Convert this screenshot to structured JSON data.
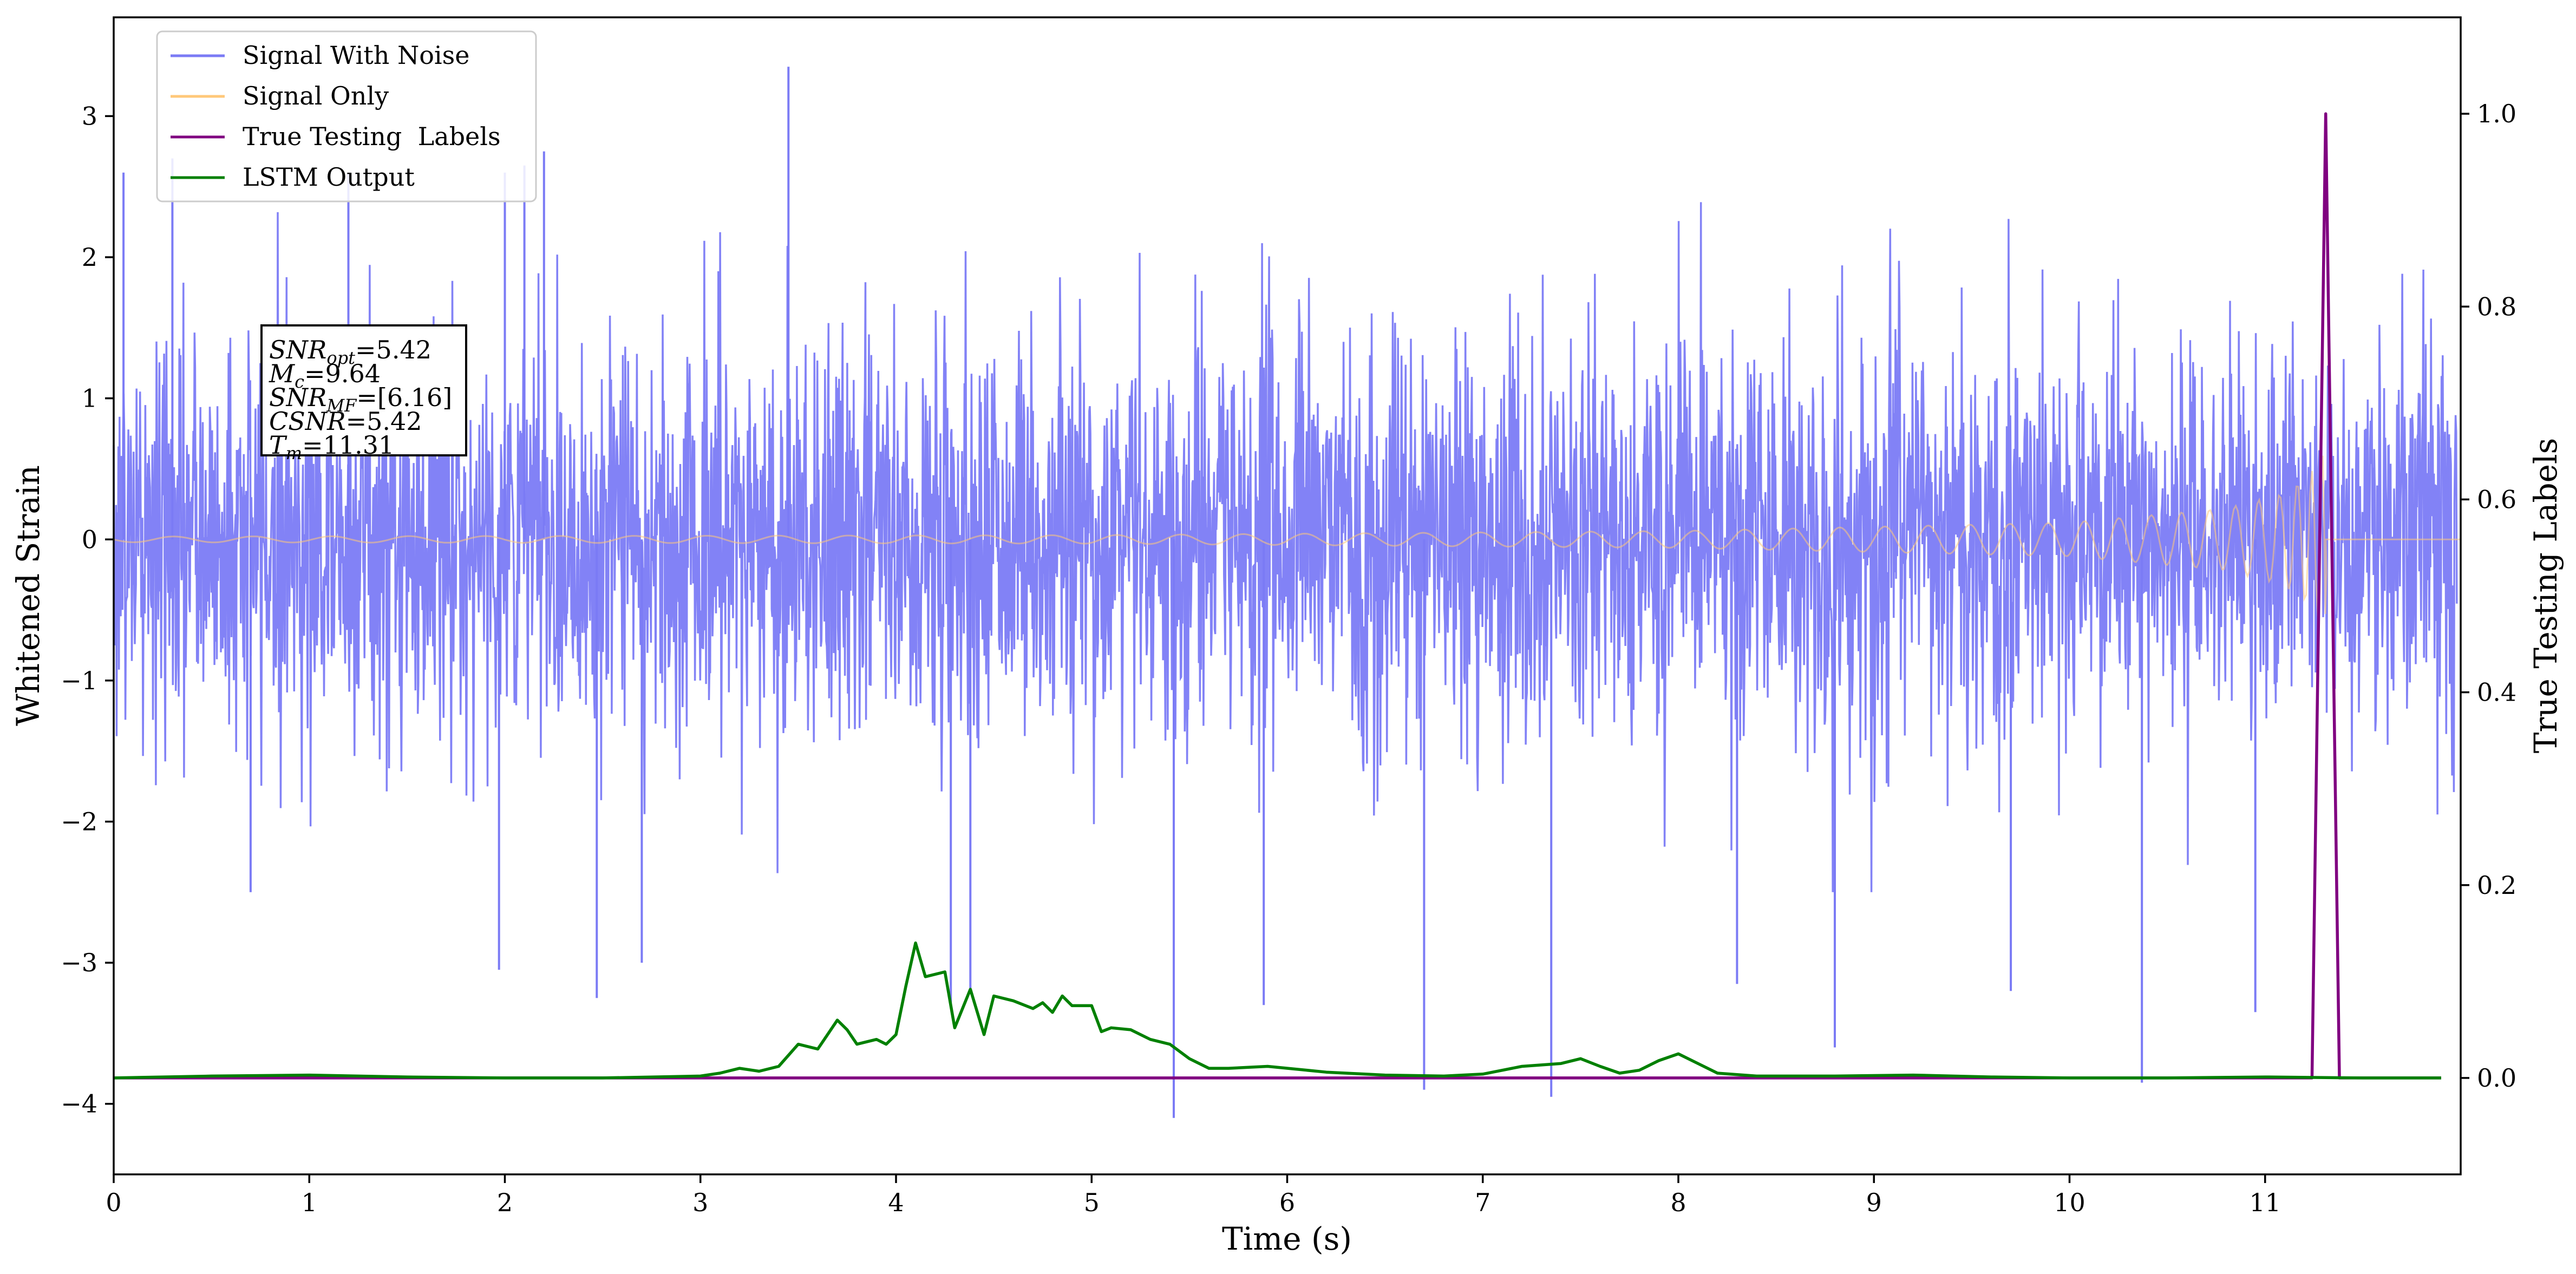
{
  "chart_data": {
    "type": "line",
    "title": "",
    "xlabel": "Time (s)",
    "ylabel": "Whitened Strain",
    "ylabel_right": "True Testing Labels",
    "xlim": [
      0,
      12
    ],
    "ylim": [
      -4.5,
      3.7
    ],
    "ylim_right": [
      -0.1,
      1.1
    ],
    "x_ticks": [
      0,
      1,
      2,
      3,
      4,
      5,
      6,
      7,
      8,
      9,
      10,
      11
    ],
    "x_tick_labels": [
      "0",
      "1",
      "2",
      "3",
      "4",
      "5",
      "6",
      "7",
      "8",
      "9",
      "10",
      "11"
    ],
    "y_ticks": [
      -4,
      -3,
      -2,
      -1,
      0,
      1,
      2,
      3
    ],
    "y_tick_labels": [
      "−4",
      "−3",
      "−2",
      "−1",
      "0",
      "1",
      "2",
      "3"
    ],
    "y_ticks_right": [
      0.0,
      0.2,
      0.4,
      0.6,
      0.8,
      1.0
    ],
    "y_tick_labels_right": [
      "0.0",
      "0.2",
      "0.4",
      "0.6",
      "0.8",
      "1.0"
    ],
    "grid": false,
    "legend": {
      "placement": "top-left",
      "entries": [
        {
          "label": "Signal With Noise",
          "color": "#7b7bf5"
        },
        {
          "label": "Signal Only",
          "color": "#ffc87a"
        },
        {
          "label": "True Testing  Labels",
          "color": "#800080"
        },
        {
          "label": "LSTM Output",
          "color": "#008000"
        }
      ]
    },
    "annotation": {
      "placement": "upper-left",
      "lines": [
        {
          "sym": "SNR",
          "sub": "opt",
          "val": "=5.42"
        },
        {
          "sym": "M",
          "sub": "c",
          "val": "=9.64"
        },
        {
          "sym": "SNR",
          "sub": "MF",
          "val": "=[6.16]"
        },
        {
          "sym": "CSNR",
          "sub": "",
          "val": "=5.42"
        },
        {
          "sym": "T",
          "sub": "m",
          "val": "=11.31"
        }
      ]
    },
    "series": [
      {
        "name": "Signal With Noise",
        "axis": "left",
        "color": "#7b7bf5",
        "description_of_shape": "dense noise, roughly |y|<=1.5 with spikes to about 3.35 and -4.1",
        "x_range": [
          0,
          11.98
        ],
        "spikes": [
          {
            "x": 0.05,
            "y": 2.6
          },
          {
            "x": 0.3,
            "y": 2.7
          },
          {
            "x": 0.7,
            "y": -2.5
          },
          {
            "x": 1.2,
            "y": 2.6
          },
          {
            "x": 1.97,
            "y": -3.05
          },
          {
            "x": 2.0,
            "y": 2.6
          },
          {
            "x": 2.1,
            "y": 2.65
          },
          {
            "x": 2.2,
            "y": 2.75
          },
          {
            "x": 2.47,
            "y": -3.25
          },
          {
            "x": 2.7,
            "y": -3.0
          },
          {
            "x": 3.45,
            "y": 3.35
          },
          {
            "x": 4.28,
            "y": -3.3
          },
          {
            "x": 4.38,
            "y": -3.2
          },
          {
            "x": 5.42,
            "y": -4.1
          },
          {
            "x": 5.88,
            "y": -3.3
          },
          {
            "x": 6.7,
            "y": -3.9
          },
          {
            "x": 7.35,
            "y": -3.95
          },
          {
            "x": 8.3,
            "y": -3.15
          },
          {
            "x": 8.8,
            "y": -3.6
          },
          {
            "x": 9.7,
            "y": -3.2
          },
          {
            "x": 10.37,
            "y": -3.85
          },
          {
            "x": 10.95,
            "y": -3.35
          }
        ]
      },
      {
        "name": "Signal Only",
        "axis": "left",
        "color": "#ffc87a",
        "description_of_shape": "chirp, amplitude about 0.02 growing to about 0.65 at 11.31 s, then zero",
        "envelope": {
          "x": [
            0,
            5,
            8,
            10,
            10.8,
            11.1,
            11.25,
            11.31,
            11.32,
            12
          ],
          "amplitude": [
            0.02,
            0.03,
            0.06,
            0.12,
            0.22,
            0.33,
            0.5,
            0.65,
            0.0,
            0.0
          ]
        }
      },
      {
        "name": "True Testing  Labels",
        "axis": "right",
        "color": "#800080",
        "x": [
          0,
          11.24,
          11.31,
          11.38,
          11.9
        ],
        "y": [
          0,
          0,
          1.0,
          0,
          0
        ]
      },
      {
        "name": "LSTM Output",
        "axis": "right",
        "color": "#008000",
        "x": [
          0,
          0.5,
          1.0,
          1.5,
          2.0,
          2.5,
          3.0,
          3.1,
          3.2,
          3.3,
          3.4,
          3.5,
          3.6,
          3.7,
          3.75,
          3.8,
          3.9,
          3.95,
          4.0,
          4.05,
          4.1,
          4.15,
          4.25,
          4.3,
          4.38,
          4.45,
          4.5,
          4.6,
          4.7,
          4.75,
          4.8,
          4.85,
          4.9,
          5.0,
          5.05,
          5.1,
          5.2,
          5.3,
          5.4,
          5.5,
          5.6,
          5.7,
          5.9,
          6.2,
          6.5,
          6.8,
          7.0,
          7.2,
          7.4,
          7.5,
          7.6,
          7.7,
          7.8,
          7.9,
          8.0,
          8.1,
          8.2,
          8.4,
          8.8,
          9.2,
          9.6,
          10.0,
          10.5,
          11.0,
          11.5,
          11.9
        ],
        "y": [
          0.0,
          0.002,
          0.003,
          0.001,
          0.0,
          0.0,
          0.002,
          0.005,
          0.01,
          0.007,
          0.012,
          0.035,
          0.03,
          0.06,
          0.05,
          0.035,
          0.04,
          0.035,
          0.045,
          0.095,
          0.14,
          0.105,
          0.11,
          0.052,
          0.092,
          0.045,
          0.085,
          0.08,
          0.072,
          0.078,
          0.068,
          0.085,
          0.075,
          0.075,
          0.048,
          0.052,
          0.05,
          0.04,
          0.035,
          0.02,
          0.01,
          0.01,
          0.012,
          0.006,
          0.003,
          0.002,
          0.004,
          0.012,
          0.015,
          0.02,
          0.012,
          0.005,
          0.008,
          0.018,
          0.025,
          0.015,
          0.005,
          0.002,
          0.002,
          0.003,
          0.001,
          0.0,
          0.0,
          0.001,
          0.0,
          0.0
        ]
      }
    ]
  }
}
